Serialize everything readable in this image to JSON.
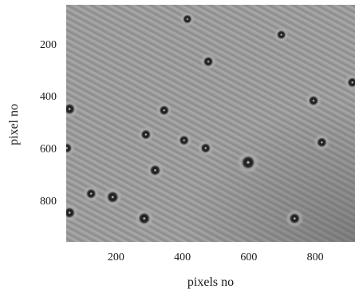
{
  "chart_data": {
    "type": "scatter",
    "subtype": "grayscale-microscopy-image",
    "title": "",
    "xlabel": "pixels no",
    "ylabel": "pixel no",
    "xlim": [
      50,
      920
    ],
    "ylim": [
      960,
      50
    ],
    "y_axis_inverted": true,
    "x_ticks": [
      200,
      400,
      600,
      800
    ],
    "y_ticks": [
      200,
      400,
      600,
      800
    ],
    "grid": false,
    "legend": "none",
    "colormap": "gray",
    "background_color": "#9c9c9c",
    "particles": [
      {
        "x": 415,
        "y": 105,
        "r": 10
      },
      {
        "x": 698,
        "y": 165,
        "r": 10
      },
      {
        "x": 478,
        "y": 268,
        "r": 11
      },
      {
        "x": 912,
        "y": 348,
        "r": 11
      },
      {
        "x": 795,
        "y": 418,
        "r": 11
      },
      {
        "x": 60,
        "y": 450,
        "r": 12
      },
      {
        "x": 345,
        "y": 455,
        "r": 11
      },
      {
        "x": 290,
        "y": 548,
        "r": 11
      },
      {
        "x": 405,
        "y": 570,
        "r": 11
      },
      {
        "x": 820,
        "y": 578,
        "r": 11
      },
      {
        "x": 470,
        "y": 600,
        "r": 11
      },
      {
        "x": 52,
        "y": 600,
        "r": 11
      },
      {
        "x": 598,
        "y": 655,
        "r": 15
      },
      {
        "x": 318,
        "y": 685,
        "r": 12
      },
      {
        "x": 125,
        "y": 775,
        "r": 11
      },
      {
        "x": 190,
        "y": 788,
        "r": 13
      },
      {
        "x": 60,
        "y": 848,
        "r": 12
      },
      {
        "x": 285,
        "y": 870,
        "r": 13
      },
      {
        "x": 738,
        "y": 870,
        "r": 12
      }
    ]
  }
}
